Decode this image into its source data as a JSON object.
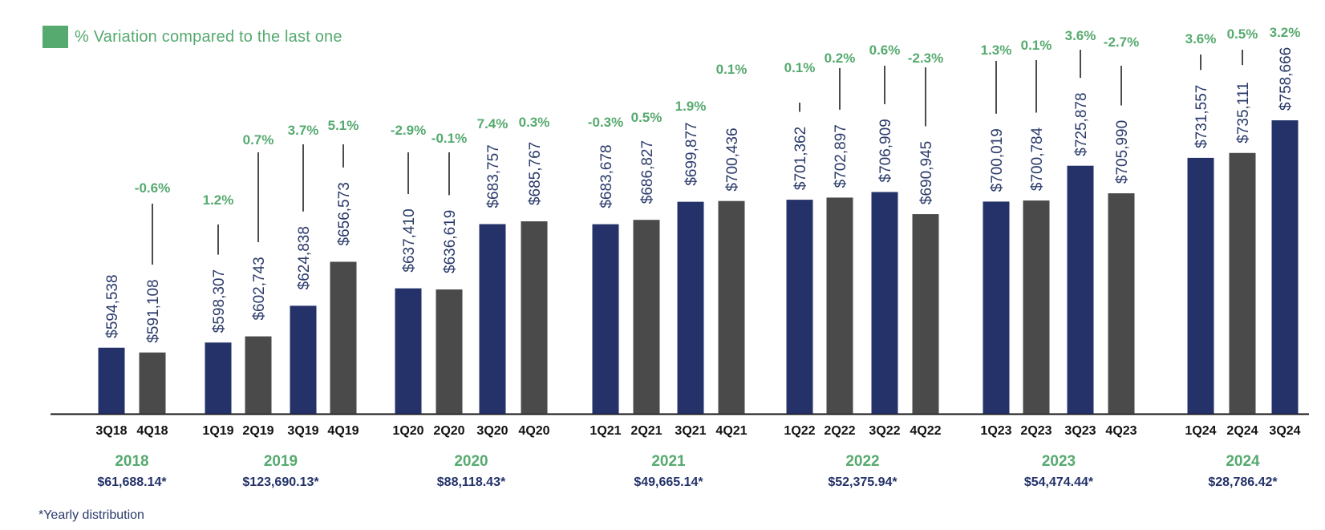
{
  "legend": {
    "label": "% Variation compared to the last one"
  },
  "footnote": "*Yearly distribution",
  "colors": {
    "navy": "#243269",
    "gray": "#4a4a4a",
    "green": "#56aa6f",
    "text": "#2a3a6a",
    "axis": "#111111"
  },
  "chart_data": {
    "type": "bar",
    "categories": [
      "3Q18",
      "4Q18",
      "1Q19",
      "2Q19",
      "3Q19",
      "4Q19",
      "1Q20",
      "2Q20",
      "3Q20",
      "4Q20",
      "1Q21",
      "2Q21",
      "3Q21",
      "4Q21",
      "1Q22",
      "2Q22",
      "3Q22",
      "4Q22",
      "1Q23",
      "2Q23",
      "3Q23",
      "4Q23",
      "1Q24",
      "2Q24",
      "3Q24"
    ],
    "values": [
      594538,
      591108,
      598307,
      602743,
      624838,
      656573,
      637410,
      636619,
      683757,
      685767,
      683678,
      686827,
      699877,
      700436,
      701362,
      702897,
      706909,
      690945,
      700019,
      700784,
      725878,
      705990,
      731557,
      735111,
      758666
    ],
    "value_labels": [
      "$594,538",
      "$591,108",
      "$598,307",
      "$602,743",
      "$624,838",
      "$656,573",
      "$637,410",
      "$636,619",
      "$683,757",
      "$685,767",
      "$683,678",
      "$686,827",
      "$699,877",
      "$700,436",
      "$701,362",
      "$702,897",
      "$706,909",
      "$690,945",
      "$700,019",
      "$700,784",
      "$725,878",
      "$705,990",
      "$731,557",
      "$735,111",
      "$758,666"
    ],
    "variation_labels": [
      "",
      "-0.6%",
      "1.2%",
      "0.7%",
      "3.7%",
      "5.1%",
      "-2.9%",
      "-0.1%",
      "7.4%",
      "0.3%",
      "-0.3%",
      "0.5%",
      "1.9%",
      "0.1%",
      "0.1%",
      "0.2%",
      "0.6%",
      "-2.3%",
      "1.3%",
      "0.1%",
      "3.6%",
      "-2.7%",
      "3.6%",
      "0.5%",
      "3.2%"
    ],
    "bar_colors": [
      "navy",
      "gray",
      "navy",
      "gray",
      "navy",
      "gray",
      "navy",
      "gray",
      "navy",
      "gray",
      "navy",
      "gray",
      "navy",
      "gray",
      "navy",
      "gray",
      "navy",
      "gray",
      "navy",
      "gray",
      "navy",
      "gray",
      "navy",
      "gray",
      "navy"
    ],
    "years": [
      {
        "year": "2018",
        "distribution": "$61,688.14*",
        "quarters": [
          0,
          1
        ]
      },
      {
        "year": "2019",
        "distribution": "$123,690.13*",
        "quarters": [
          2,
          3,
          4,
          5
        ]
      },
      {
        "year": "2020",
        "distribution": "$88,118.43*",
        "quarters": [
          6,
          7,
          8,
          9
        ]
      },
      {
        "year": "2021",
        "distribution": "$49,665.14*",
        "quarters": [
          10,
          11,
          12,
          13
        ]
      },
      {
        "year": "2022",
        "distribution": "$52,375.94*",
        "quarters": [
          14,
          15,
          16,
          17
        ]
      },
      {
        "year": "2023",
        "distribution": "$54,474.44*",
        "quarters": [
          18,
          19,
          20,
          21
        ]
      },
      {
        "year": "2024",
        "distribution": "$28,786.42*",
        "quarters": [
          22,
          23,
          24
        ]
      }
    ],
    "grid": false
  }
}
